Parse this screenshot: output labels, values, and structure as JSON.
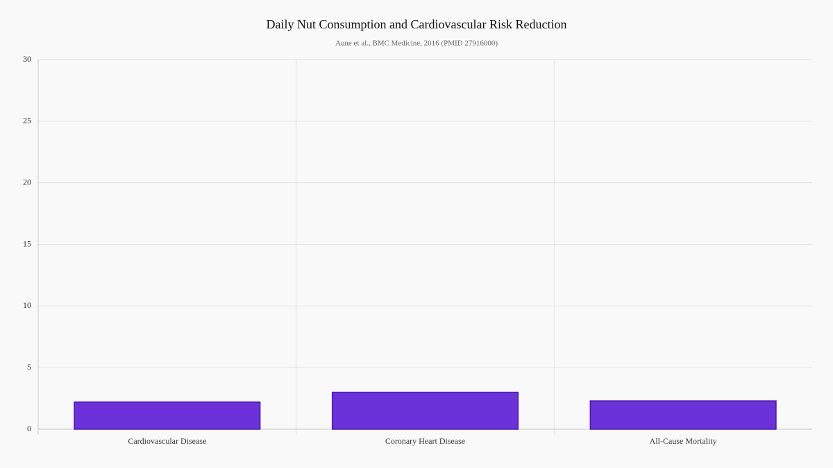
{
  "chart_data": {
    "type": "bar",
    "title": "Daily Nut Consumption and Cardiovascular Risk Reduction",
    "subtitle": "Aune et al., BMC Medicine, 2016 (PMID 27916000)",
    "categories": [
      "Cardiovascular Disease",
      "Coronary Heart Disease",
      "All-Cause Mortality"
    ],
    "values": [
      2.2,
      3.0,
      2.3
    ],
    "color": "#6a32d8",
    "ylim": [
      0,
      30
    ],
    "yticks": [
      0,
      5,
      10,
      15,
      20,
      25,
      30
    ],
    "grid": true
  }
}
